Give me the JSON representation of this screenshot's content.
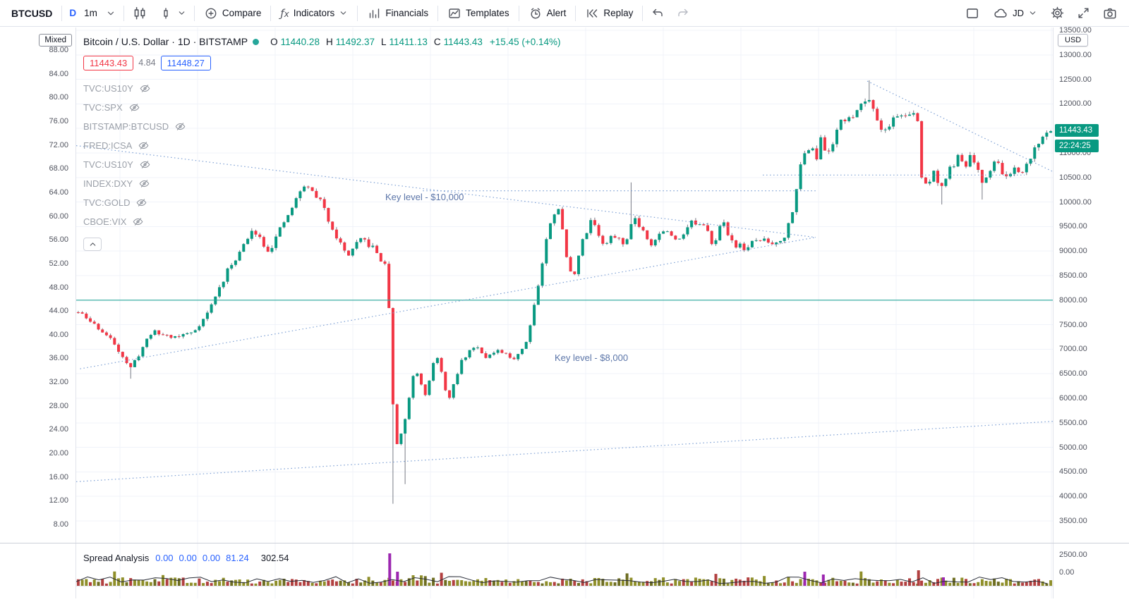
{
  "toolbar": {
    "symbol": "BTCUSD",
    "interval_daily": "D",
    "interval_current": "1m",
    "compare": "Compare",
    "indicators": "Indicators",
    "financials": "Financials",
    "templates": "Templates",
    "alert": "Alert",
    "replay": "Replay",
    "account": "JD"
  },
  "legend": {
    "title": "Bitcoin / U.S. Dollar · 1D · BITSTAMP",
    "ohlc": [
      [
        "O",
        "11440.28"
      ],
      [
        "H",
        "11492.37"
      ],
      [
        "L",
        "11411.13"
      ],
      [
        "C",
        "11443.43"
      ]
    ],
    "change": "+15.45 (+0.14%)",
    "sell_price": "11443.43",
    "spread": "4.84",
    "buy_price": "11448.27",
    "studies": [
      "TVC:US10Y",
      "TVC:SPX",
      "BITSTAMP:BTCUSD",
      "FRED:ICSA",
      "TVC:US10Y",
      "INDEX:DXY",
      "TVC:GOLD",
      "CBOE:VIX"
    ]
  },
  "left_axis": {
    "mode": "Mixed",
    "labels": [
      "88.00",
      "84.00",
      "80.00",
      "76.00",
      "72.00",
      "68.00",
      "64.00",
      "60.00",
      "56.00",
      "52.00",
      "48.00",
      "44.00",
      "40.00",
      "36.00",
      "32.00",
      "28.00",
      "24.00",
      "20.00",
      "16.00",
      "12.00",
      "8.00"
    ]
  },
  "right_axis": {
    "currency": "USD",
    "labels": [
      "13500.00",
      "13000.00",
      "12500.00",
      "12000.00",
      "11500.00",
      "11000.00",
      "10500.00",
      "10000.00",
      "9500.00",
      "9000.00",
      "8500.00",
      "8000.00",
      "7500.00",
      "7000.00",
      "6500.00",
      "6000.00",
      "5500.00",
      "5000.00",
      "4500.00",
      "4000.00",
      "3500.00"
    ],
    "pane2_labels": [
      "2500.00",
      "0.00"
    ],
    "price_badge": "11443.43",
    "countdown": "22:24:25"
  },
  "bottom_pane": {
    "title": "Spread Analysis",
    "values": [
      "0.00",
      "0.00",
      "0.00",
      "81.24"
    ],
    "last_value": "302.54"
  },
  "colors": {
    "up": "#089981",
    "down": "#f23645",
    "wick": "#787b86",
    "grid": "#f0f3fa",
    "trendline": "#7da0d4",
    "key_level": "#26a69a",
    "annotation": "#5b75a8",
    "accent_blue": "#2962ff",
    "badge": "#089981",
    "vol_olive": "#8f8f2a",
    "vol_dark": "#6e6e22",
    "vol_red": "#b24040",
    "vol_purple": "#9c27b0"
  },
  "chart_data": {
    "type": "candlestick",
    "symbol": "BITSTAMP:BTCUSD",
    "interval": "1D",
    "quote": {
      "open": 11440.28,
      "high": 11492.37,
      "low": 11411.13,
      "close": 11443.43,
      "change": "+15.45 (+0.14%)"
    },
    "y_axis": {
      "min": 3500,
      "max": 13500,
      "tick_step": 500,
      "unit": "USD"
    },
    "candles": {
      "count": 242,
      "note": "approximate BTCUSD daily prices, interpolated from anchors [x-position 0-1, price USD]",
      "path": [
        [
          0.0,
          7750
        ],
        [
          0.02,
          7450
        ],
        [
          0.038,
          7100
        ],
        [
          0.054,
          6600
        ],
        [
          0.075,
          7350
        ],
        [
          0.1,
          7250
        ],
        [
          0.118,
          7350
        ],
        [
          0.132,
          7700
        ],
        [
          0.155,
          8650
        ],
        [
          0.181,
          9450
        ],
        [
          0.196,
          9000
        ],
        [
          0.215,
          9700
        ],
        [
          0.232,
          10350
        ],
        [
          0.247,
          10100
        ],
        [
          0.262,
          9450
        ],
        [
          0.276,
          8900
        ],
        [
          0.292,
          9250
        ],
        [
          0.306,
          9000
        ],
        [
          0.318,
          8600
        ],
        [
          0.3255,
          4950
        ],
        [
          0.335,
          5450
        ],
        [
          0.346,
          6650
        ],
        [
          0.357,
          6100
        ],
        [
          0.368,
          6900
        ],
        [
          0.381,
          5950
        ],
        [
          0.394,
          6750
        ],
        [
          0.408,
          7100
        ],
        [
          0.42,
          6850
        ],
        [
          0.433,
          6950
        ],
        [
          0.447,
          6800
        ],
        [
          0.46,
          7100
        ],
        [
          0.472,
          8200
        ],
        [
          0.483,
          9400
        ],
        [
          0.493,
          10000
        ],
        [
          0.502,
          8900
        ],
        [
          0.508,
          8400
        ],
        [
          0.517,
          9100
        ],
        [
          0.528,
          9700
        ],
        [
          0.54,
          9100
        ],
        [
          0.553,
          9350
        ],
        [
          0.562,
          9050
        ],
        [
          0.57,
          9750
        ],
        [
          0.578,
          9500
        ],
        [
          0.59,
          9150
        ],
        [
          0.602,
          9450
        ],
        [
          0.615,
          9200
        ],
        [
          0.63,
          9600
        ],
        [
          0.645,
          9450
        ],
        [
          0.653,
          9150
        ],
        [
          0.662,
          9600
        ],
        [
          0.674,
          9150
        ],
        [
          0.686,
          9050
        ],
        [
          0.7,
          9250
        ],
        [
          0.714,
          9150
        ],
        [
          0.726,
          9300
        ],
        [
          0.733,
          9700
        ],
        [
          0.741,
          10600
        ],
        [
          0.748,
          11050
        ],
        [
          0.754,
          11200
        ],
        [
          0.759,
          10900
        ],
        [
          0.764,
          11300
        ],
        [
          0.769,
          10950
        ],
        [
          0.776,
          11200
        ],
        [
          0.783,
          11750
        ],
        [
          0.791,
          11600
        ],
        [
          0.8,
          11900
        ],
        [
          0.808,
          12050
        ],
        [
          0.8135,
          12150
        ],
        [
          0.82,
          11800
        ],
        [
          0.827,
          11400
        ],
        [
          0.836,
          11650
        ],
        [
          0.846,
          11800
        ],
        [
          0.856,
          11750
        ],
        [
          0.8625,
          11800
        ],
        [
          0.867,
          10500
        ],
        [
          0.873,
          10350
        ],
        [
          0.88,
          10600
        ],
        [
          0.888,
          10300
        ],
        [
          0.896,
          10650
        ],
        [
          0.904,
          10900
        ],
        [
          0.911,
          10700
        ],
        [
          0.918,
          10950
        ],
        [
          0.925,
          10600
        ],
        [
          0.931,
          10350
        ],
        [
          0.938,
          10700
        ],
        [
          0.944,
          10850
        ],
        [
          0.951,
          10600
        ],
        [
          0.957,
          10450
        ],
        [
          0.963,
          10650
        ],
        [
          0.969,
          10500
        ],
        [
          0.975,
          10750
        ],
        [
          0.981,
          11000
        ],
        [
          0.988,
          11250
        ],
        [
          1.0,
          11445
        ]
      ],
      "wicks": [
        [
          0.054,
          "low",
          6400
        ],
        [
          0.3255,
          "low",
          3850
        ],
        [
          0.335,
          "low",
          4250
        ],
        [
          0.57,
          "high",
          10400
        ],
        [
          0.8135,
          "high",
          12480
        ],
        [
          0.888,
          "low",
          9950
        ],
        [
          0.931,
          "low",
          10050
        ]
      ]
    },
    "lines": [
      {
        "f1": 0.0,
        "p1": 8000,
        "f2": 1.0,
        "p2": 8000,
        "style": "solid",
        "color": "#26a69a",
        "role": "key-level-8000"
      },
      {
        "f1": 0.355,
        "p1": 10230,
        "f2": 0.757,
        "p2": 10230,
        "style": "dotted",
        "color": "#7da0d4",
        "role": "key-level-10000"
      },
      {
        "f1": 0.703,
        "p1": 10550,
        "f2": 0.971,
        "p2": 10550,
        "style": "dotted",
        "color": "#7da0d4",
        "role": "resistance-10500"
      },
      {
        "f1": 0.0,
        "p1": 4300,
        "f2": 1.0,
        "p2": 5530,
        "style": "dotted",
        "color": "#7da0d4",
        "role": "long-term-support"
      },
      {
        "f1": 0.004,
        "p1": 6600,
        "f2": 0.757,
        "p2": 9280,
        "style": "dotted",
        "color": "#7da0d4",
        "role": "rising-wedge-support"
      },
      {
        "f1": 0.0,
        "p1": 11150,
        "f2": 0.757,
        "p2": 9280,
        "style": "dotted",
        "color": "#7da0d4",
        "role": "falling-wedge-resistance"
      },
      {
        "f1": 0.81,
        "p1": 12465,
        "f2": 1.0,
        "p2": 10620,
        "style": "dotted",
        "color": "#7da0d4",
        "role": "downtrend-from-high"
      }
    ],
    "annotations": [
      {
        "text": "Key level - $10,000",
        "f": 0.317,
        "price": 10080
      },
      {
        "text": "Key level - $8,000",
        "f": 0.49,
        "price": 6800
      }
    ],
    "volume_pane": {
      "label": "Spread Analysis",
      "spikes": [
        [
          0.321,
          46,
          "#9c27b0"
        ],
        [
          0.329,
          20,
          "#9c27b0"
        ],
        [
          0.746,
          20,
          "#9c27b0"
        ],
        [
          0.765,
          16,
          "#9c27b0"
        ],
        [
          0.8625,
          22,
          "#b24040"
        ],
        [
          0.888,
          12,
          "#9c27b0"
        ]
      ]
    }
  }
}
